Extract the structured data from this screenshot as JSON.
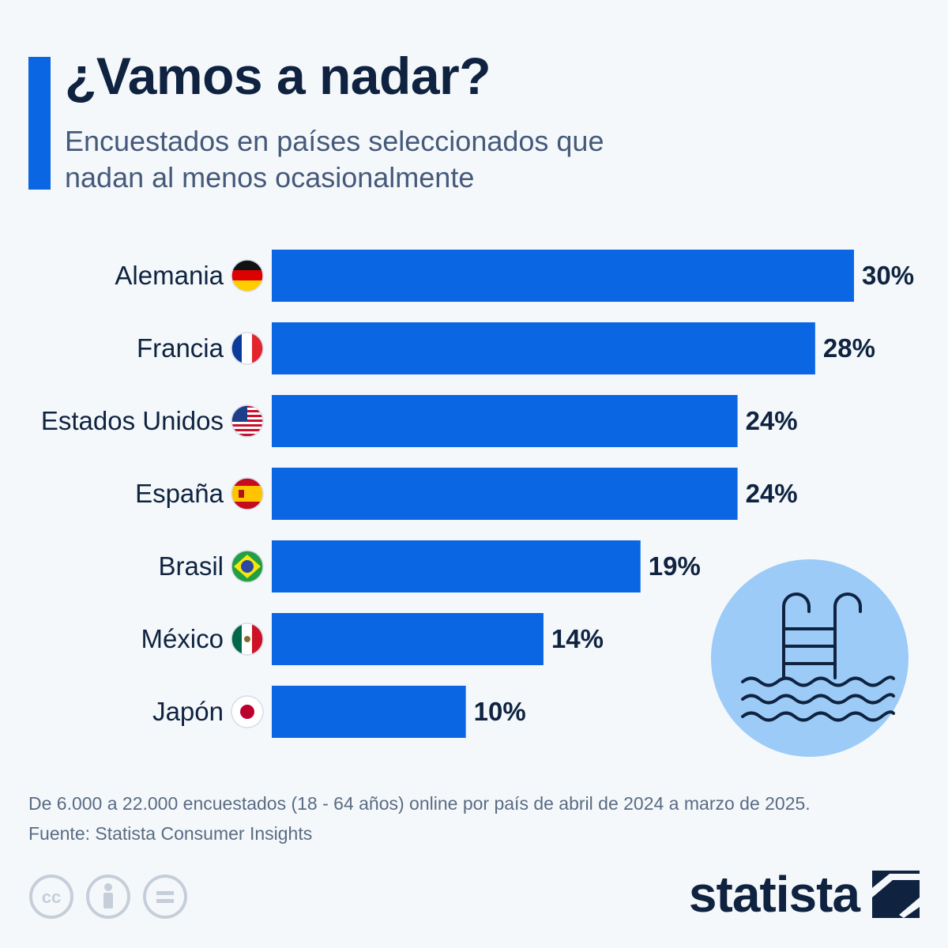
{
  "header": {
    "title": "¿Vamos a nadar?",
    "subtitle": "Encuestados en países seleccionados que nadan al menos ocasionalmente"
  },
  "chart_data": {
    "type": "bar",
    "orientation": "horizontal",
    "categories": [
      "Alemania",
      "Francia",
      "Estados Unidos",
      "España",
      "Brasil",
      "México",
      "Japón"
    ],
    "values": [
      30,
      28,
      24,
      24,
      19,
      14,
      10
    ],
    "value_labels": [
      "30%",
      "28%",
      "24%",
      "24%",
      "19%",
      "14%",
      "10%"
    ],
    "flags": [
      "germany-flag-icon",
      "france-flag-icon",
      "usa-flag-icon",
      "spain-flag-icon",
      "brazil-flag-icon",
      "mexico-flag-icon",
      "japan-flag-icon"
    ],
    "unit": "%",
    "xlim": [
      0,
      30
    ],
    "grid": false,
    "legend": "none",
    "bar_color": "#0b66e3"
  },
  "footer": {
    "note": "De 6.000 a 22.000 encuestados (18 - 64 años) online por país de abril de 2024 a marzo de 2025.",
    "source": "Fuente: Statista Consumer Insights",
    "brand": "statista"
  },
  "colors": {
    "accent": "#0b66e3",
    "title_text": "#0f2340",
    "subtitle_text": "#45597a",
    "note_text": "#5a6b83",
    "background": "#f4f8fb",
    "pool_circle": "#9ccbf8"
  }
}
